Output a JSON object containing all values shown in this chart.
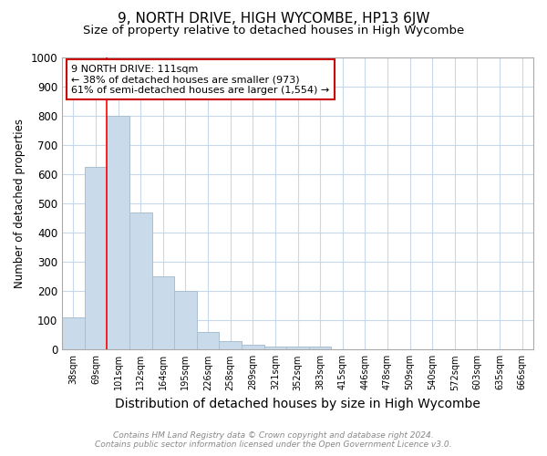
{
  "title": "9, NORTH DRIVE, HIGH WYCOMBE, HP13 6JW",
  "subtitle": "Size of property relative to detached houses in High Wycombe",
  "xlabel": "Distribution of detached houses by size in High Wycombe",
  "ylabel": "Number of detached properties",
  "footnote1": "Contains HM Land Registry data © Crown copyright and database right 2024.",
  "footnote2": "Contains public sector information licensed under the Open Government Licence v3.0.",
  "bar_labels": [
    "38sqm",
    "69sqm",
    "101sqm",
    "132sqm",
    "164sqm",
    "195sqm",
    "226sqm",
    "258sqm",
    "289sqm",
    "321sqm",
    "352sqm",
    "383sqm",
    "415sqm",
    "446sqm",
    "478sqm",
    "509sqm",
    "540sqm",
    "572sqm",
    "603sqm",
    "635sqm",
    "666sqm"
  ],
  "bar_values": [
    110,
    625,
    800,
    470,
    250,
    200,
    60,
    28,
    15,
    10,
    10,
    10,
    0,
    0,
    0,
    0,
    0,
    0,
    0,
    0,
    0
  ],
  "bar_color": "#c9daea",
  "bar_edge_color": "#aabfcf",
  "red_line_index": 2,
  "annotation_line1": "9 NORTH DRIVE: 111sqm",
  "annotation_line2": "← 38% of detached houses are smaller (973)",
  "annotation_line3": "61% of semi-detached houses are larger (1,554) →",
  "annotation_box_color": "#ffffff",
  "annotation_box_edge_color": "#cc0000",
  "ylim": [
    0,
    1000
  ],
  "yticks": [
    0,
    100,
    200,
    300,
    400,
    500,
    600,
    700,
    800,
    900,
    1000
  ],
  "background_color": "#ffffff",
  "grid_color": "#c8d8e8",
  "title_fontsize": 11,
  "subtitle_fontsize": 9.5,
  "xlabel_fontsize": 10,
  "ylabel_fontsize": 8.5,
  "footnote_fontsize": 6.5
}
